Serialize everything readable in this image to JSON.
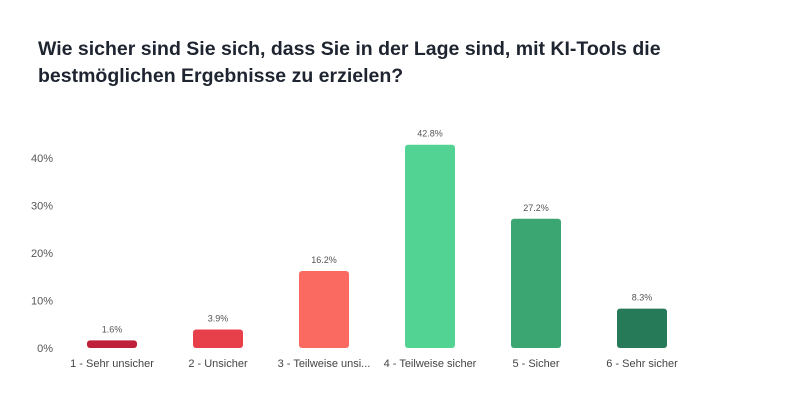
{
  "chart_data": {
    "type": "bar",
    "title": "Wie sicher sind Sie sich, dass Sie in der Lage sind, mit KI-Tools die bestmöglichen Ergebnisse zu erzielen?",
    "categories": [
      "1 - Sehr unsicher",
      "2 - Unsicher",
      "3 - Teilweise unsi...",
      "4 - Teilweise sicher",
      "5 - Sicher",
      "6 - Sehr sicher"
    ],
    "values": [
      1.6,
      3.9,
      16.2,
      42.8,
      27.2,
      8.3
    ],
    "data_labels": [
      "1.6%",
      "3.9%",
      "16.2%",
      "42.8%",
      "27.2%",
      "8.3%"
    ],
    "colors": [
      "#c0213a",
      "#e8404a",
      "#fb6a60",
      "#52d394",
      "#3ba672",
      "#267a58"
    ],
    "yticks": [
      "0%",
      "10%",
      "20%",
      "30%",
      "40%"
    ],
    "ylim": [
      0,
      40
    ],
    "xlabel": "",
    "ylabel": "",
    "grid": false
  }
}
